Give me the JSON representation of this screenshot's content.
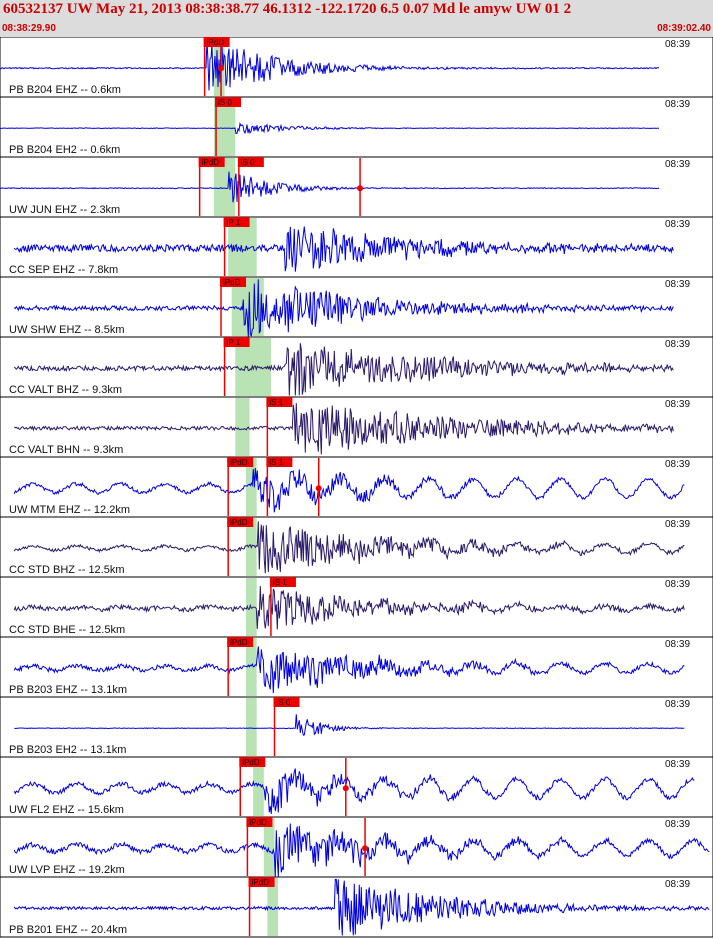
{
  "header": {
    "title": "60532137 UW May 21, 2013 08:38:38.77   46.1312 -122.1720  6.5 0.07 Md le amyw UW 01   2",
    "start_time": "08:38:29.90",
    "end_time": "08:39:02.40"
  },
  "colors": {
    "header_bg": "#dcdcdc",
    "header_text": "#cc0000",
    "pick": "#ee0000",
    "window": "#b9e2b5",
    "trace_blue": "#0000e0",
    "trace_navy": "#2a1a6a"
  },
  "chart_data": {
    "type": "seismogram",
    "x_range": [
      "08:38:29.90",
      "08:39:02.40"
    ],
    "tick_label": "08:39",
    "traces": [
      {
        "label": "PB B204 EHZ -- 0.6km",
        "time": "08:39",
        "color": "#0000e0",
        "picks": [
          {
            "text": "iPdD",
            "x": 0.287
          },
          {
            "text": "",
            "x": 0.31
          }
        ],
        "win": [
          0.3,
          0.315
        ],
        "onset": 0.29,
        "amp": 0.55,
        "noise": 0.02,
        "decay": 0.2,
        "end": 0.925,
        "osc": 0
      },
      {
        "label": "PB B204 EH2 -- 0.6km",
        "time": "08:39",
        "color": "#0000e0",
        "picks": [
          {
            "text": "iS 0",
            "x": 0.303
          }
        ],
        "win": [
          0.3,
          0.33
        ],
        "onset": 0.33,
        "amp": 0.12,
        "noise": 0.01,
        "decay": 0.15,
        "end": 0.925,
        "osc": 0
      },
      {
        "label": "UW JUN EHZ -- 2.3km",
        "time": "08:39",
        "color": "#0000e0",
        "picks": [
          {
            "text": "iPdD",
            "x": 0.28
          },
          {
            "text": "iS 0",
            "x": 0.335
          },
          {
            "text": "",
            "x": 0.505
          }
        ],
        "win": [
          0.3,
          0.33
        ],
        "onset": 0.32,
        "amp": 0.35,
        "noise": 0.015,
        "decay": 0.12,
        "end": 0.925,
        "osc": 0
      },
      {
        "label": "CC SEP EHZ -- 7.8km",
        "time": "08:39",
        "color": "#0000e0",
        "picks": [
          {
            "text": "iP 1",
            "x": 0.315
          }
        ],
        "win": [
          0.32,
          0.36
        ],
        "onset": 0.4,
        "amp": 0.45,
        "noise": 0.12,
        "decay": 0.35,
        "end": 0.945,
        "osc": 0
      },
      {
        "label": "UW SHW EHZ -- 8.5km",
        "time": "08:39",
        "color": "#0000e0",
        "picks": [
          {
            "text": "iPdD",
            "x": 0.31
          }
        ],
        "win": [
          0.325,
          0.37
        ],
        "onset": 0.34,
        "amp": 0.55,
        "noise": 0.08,
        "decay": 0.35,
        "end": 0.945,
        "osc": 0
      },
      {
        "label": "CC VALT BHZ -- 9.3km",
        "time": "08:39",
        "color": "#2a1a6a",
        "picks": [
          {
            "text": "iP 1",
            "x": 0.315
          }
        ],
        "win": [
          0.33,
          0.38
        ],
        "onset": 0.4,
        "amp": 0.5,
        "noise": 0.08,
        "decay": 0.45,
        "end": 0.945,
        "osc": 0
      },
      {
        "label": "CC VALT BHN -- 9.3km",
        "time": "08:39",
        "color": "#2a1a6a",
        "picks": [
          {
            "text": "iS 1",
            "x": 0.375
          }
        ],
        "win": [
          0.33,
          0.35
        ],
        "onset": 0.41,
        "amp": 0.5,
        "noise": 0.06,
        "decay": 0.5,
        "end": 0.945,
        "osc": 0
      },
      {
        "label": "UW MTM EHZ -- 12.2km",
        "time": "08:39",
        "color": "#0000e0",
        "picks": [
          {
            "text": "iPdD",
            "x": 0.32
          },
          {
            "text": "iS 1",
            "x": 0.375
          },
          {
            "text": "",
            "x": 0.447
          }
        ],
        "win": [
          0.345,
          0.36
        ],
        "onset": 0.355,
        "amp": 0.3,
        "noise": 0.06,
        "decay": 0.3,
        "end": 0.96,
        "osc": 0.12
      },
      {
        "label": "CC STD BHZ -- 12.5km",
        "time": "08:39",
        "color": "#2a1a6a",
        "picks": [
          {
            "text": "iPdD",
            "x": 0.32
          }
        ],
        "win": [
          0.345,
          0.36
        ],
        "onset": 0.36,
        "amp": 0.45,
        "noise": 0.05,
        "decay": 0.4,
        "end": 0.96,
        "osc": 0.06
      },
      {
        "label": "CC STD BHE -- 12.5km",
        "time": "08:39",
        "color": "#2a1a6a",
        "picks": [
          {
            "text": "iS 1",
            "x": 0.38
          }
        ],
        "win": [
          0.345,
          0.36
        ],
        "onset": 0.36,
        "amp": 0.4,
        "noise": 0.08,
        "decay": 0.35,
        "end": 0.96,
        "osc": 0.03
      },
      {
        "label": "PB B203 EHZ -- 13.1km",
        "time": "08:39",
        "color": "#0000e0",
        "picks": [
          {
            "text": "iPdD",
            "x": 0.32
          }
        ],
        "win": [
          0.345,
          0.36
        ],
        "onset": 0.36,
        "amp": 0.4,
        "noise": 0.07,
        "decay": 0.35,
        "end": 0.96,
        "osc": 0.06
      },
      {
        "label": "PB B203 EH2 -- 13.1km",
        "time": "08:39",
        "color": "#0000e0",
        "picks": [
          {
            "text": "iS 0",
            "x": 0.385
          }
        ],
        "win": [
          0.345,
          0.36
        ],
        "onset": 0.415,
        "amp": 0.25,
        "noise": 0.01,
        "decay": 0.08,
        "end": 0.96,
        "osc": 0
      },
      {
        "label": "UW FL2 EHZ -- 15.6km",
        "time": "08:39",
        "color": "#0000e0",
        "picks": [
          {
            "text": "iPdD",
            "x": 0.337
          },
          {
            "text": "",
            "x": 0.485
          }
        ],
        "win": [
          0.355,
          0.37
        ],
        "onset": 0.37,
        "amp": 0.35,
        "noise": 0.08,
        "decay": 0.25,
        "end": 0.975,
        "osc": 0.12
      },
      {
        "label": "UW LVP EHZ -- 19.2km",
        "time": "08:39",
        "color": "#0000e0",
        "picks": [
          {
            "text": "iPdD",
            "x": 0.347
          },
          {
            "text": "",
            "x": 0.512
          }
        ],
        "win": [
          0.37,
          0.385
        ],
        "onset": 0.385,
        "amp": 0.45,
        "noise": 0.08,
        "decay": 0.3,
        "end": 0.995,
        "osc": 0.1
      },
      {
        "label": "PB B201 EHZ -- 20.4km",
        "time": "08:39",
        "color": "#0000e0",
        "picks": [
          {
            "text": "iPdD",
            "x": 0.35
          }
        ],
        "win": [
          0.375,
          0.39
        ],
        "onset": 0.47,
        "amp": 0.6,
        "noise": 0.05,
        "decay": 0.3,
        "end": 0.995,
        "osc": 0
      }
    ]
  }
}
